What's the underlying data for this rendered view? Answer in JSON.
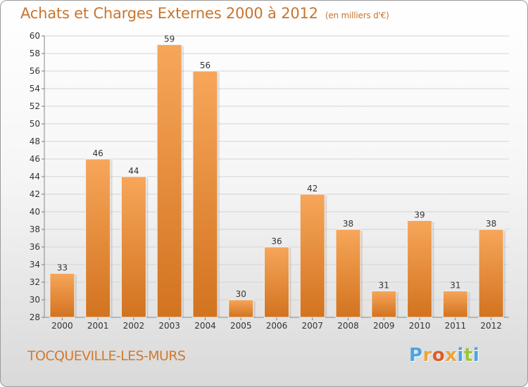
{
  "header": {
    "title": "Achats et Charges Externes 2000 à 2012",
    "unit_note": "(en milliers d'€)"
  },
  "footer": {
    "commune": "TOCQUEVILLE-LES-MURS",
    "brand": "Proxiti"
  },
  "colors": {
    "bar_top": "#f7a65a",
    "bar_bottom": "#d2731f",
    "accent_text": "#c8752e",
    "brand_letters": [
      "#4fa3e0",
      "#f0a33a",
      "#e05a2a",
      "#f0a33a",
      "#4fa3e0",
      "#9bc53d",
      "#4fa3e0"
    ]
  },
  "chart_data": {
    "type": "bar",
    "title": "Achats et Charges Externes 2000 à 2012",
    "subtitle": "(en milliers d'€)",
    "xlabel": "",
    "ylabel": "",
    "categories": [
      "2000",
      "2001",
      "2002",
      "2003",
      "2004",
      "2005",
      "2006",
      "2007",
      "2008",
      "2009",
      "2010",
      "2011",
      "2012"
    ],
    "values": [
      33,
      46,
      44,
      59,
      56,
      30,
      36,
      42,
      38,
      31,
      39,
      31,
      38
    ],
    "ylim": [
      28,
      60
    ],
    "yticks": [
      28,
      30,
      32,
      34,
      36,
      38,
      40,
      42,
      44,
      46,
      48,
      50,
      52,
      54,
      56,
      58,
      60
    ],
    "grid": true,
    "data_labels": true
  }
}
